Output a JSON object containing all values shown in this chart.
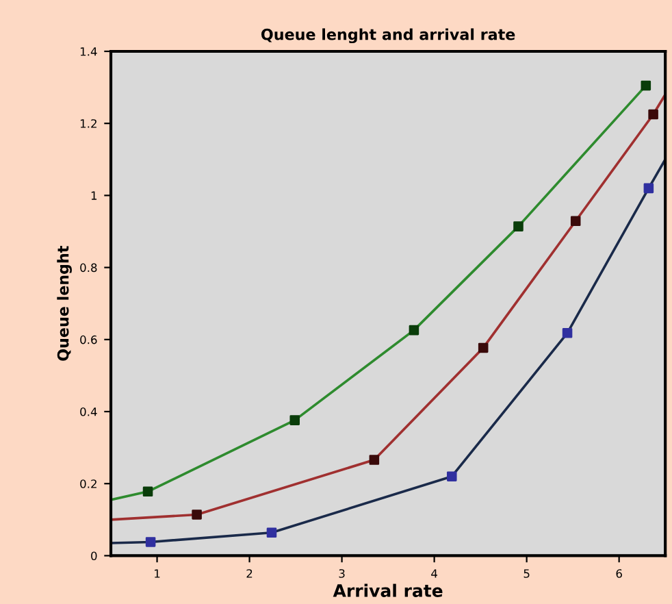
{
  "chart_data": {
    "type": "line",
    "title": "Queue lenght and arrival rate",
    "xlabel": "Arrival rate",
    "ylabel": "Queue lenght",
    "xlim": [
      0.5,
      6.5
    ],
    "ylim": [
      0,
      1.4
    ],
    "xticks": [
      1,
      2,
      3,
      4,
      5,
      6
    ],
    "yticks": [
      0,
      0.2,
      0.4,
      0.6,
      0.8,
      1,
      1.2,
      1.4
    ],
    "grid": false,
    "legend": false,
    "series": [
      {
        "marker": "none",
        "color": "#2e8b2e",
        "x": [
          0.5,
          0.9,
          2.49,
          3.78,
          4.91,
          6.29
        ],
        "values": [
          0.155,
          0.178,
          0.376,
          0.626,
          0.914,
          1.305
        ]
      },
      {
        "type": "scatter",
        "marker": "square",
        "color": "#0a3d0a",
        "x": [
          0.9,
          2.49,
          3.78,
          4.91,
          6.29
        ],
        "values": [
          0.178,
          0.376,
          0.626,
          0.914,
          1.305
        ]
      },
      {
        "marker": "none",
        "color": "#a03030",
        "x": [
          0.5,
          1.43,
          3.35,
          4.53,
          5.53,
          6.37,
          6.5
        ],
        "values": [
          0.1,
          0.114,
          0.266,
          0.577,
          0.929,
          1.225,
          1.28
        ]
      },
      {
        "type": "scatter",
        "marker": "square",
        "color": "#3a0a0a",
        "x": [
          1.43,
          3.35,
          4.53,
          5.53,
          6.37
        ],
        "values": [
          0.114,
          0.266,
          0.577,
          0.929,
          1.225
        ]
      },
      {
        "marker": "none",
        "color": "#1a2a4a",
        "x": [
          0.5,
          0.93,
          2.24,
          4.19,
          5.44,
          6.32,
          6.5
        ],
        "values": [
          0.035,
          0.038,
          0.064,
          0.22,
          0.618,
          1.02,
          1.1
        ]
      },
      {
        "type": "scatter",
        "marker": "square",
        "color": "#3030a0",
        "x": [
          0.93,
          2.24,
          4.19,
          5.44,
          6.32
        ],
        "values": [
          0.038,
          0.064,
          0.22,
          0.618,
          1.02
        ]
      }
    ]
  }
}
